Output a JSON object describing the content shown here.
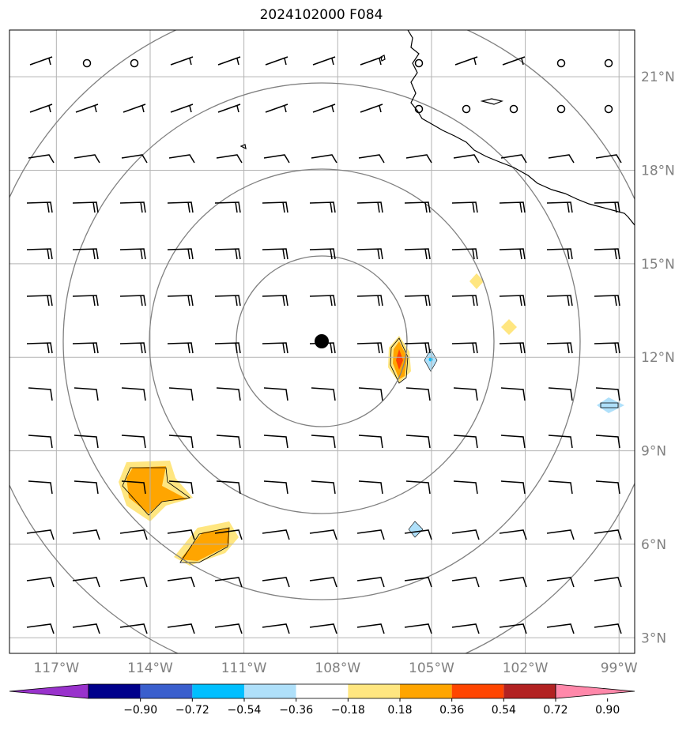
{
  "title": "2024102000 F084",
  "map": {
    "lon_range": [
      -118.5,
      -98.5
    ],
    "lat_range": [
      2.5,
      22.5
    ],
    "gridline_color": "#b3b3b3",
    "range_ring_color": "#808080",
    "center": {
      "lon": -108,
      "lat": 12.6
    },
    "lat_labels": [
      "21°N",
      "18°N",
      "15°N",
      "12°N",
      "9°N",
      "6°N",
      "3°N"
    ],
    "lat_values": [
      21,
      18,
      15,
      12,
      9,
      6,
      3
    ],
    "lon_labels": [
      "117°W",
      "114°W",
      "111°W",
      "108°W",
      "105°W",
      "102°W",
      "99°W"
    ],
    "lon_values": [
      -117,
      -114,
      -111,
      -108,
      -105,
      -102,
      -99
    ]
  },
  "colorbar": {
    "ticks": [
      "−0.90",
      "−0.72",
      "−0.54",
      "−0.36",
      "−0.18",
      "0.18",
      "0.36",
      "0.54",
      "0.72",
      "0.90"
    ],
    "colors": [
      "#9932cc",
      "#00008b",
      "#3a5fcd",
      "#00bfff",
      "#afe0fa",
      "#ffffff",
      "#ffe680",
      "#ffa500",
      "#ff4500",
      "#b22222",
      "#ff88aa"
    ]
  }
}
